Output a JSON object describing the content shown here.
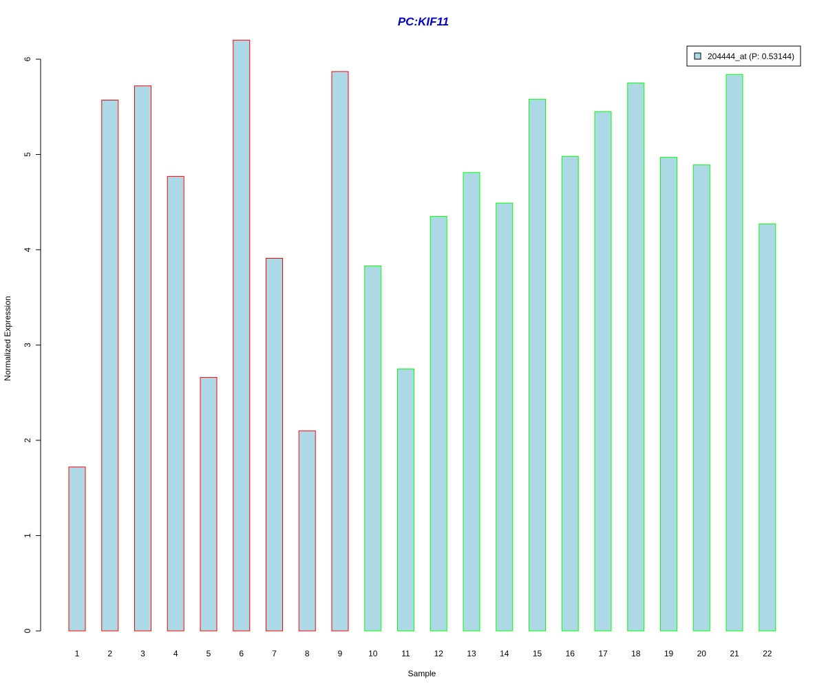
{
  "chart_data": {
    "type": "bar",
    "title": "PC:KIF11",
    "xlabel": "Sample",
    "ylabel": "Normalized Expression",
    "categories": [
      "1",
      "2",
      "3",
      "4",
      "5",
      "6",
      "7",
      "8",
      "9",
      "10",
      "11",
      "12",
      "13",
      "14",
      "15",
      "16",
      "17",
      "18",
      "19",
      "20",
      "21",
      "22"
    ],
    "values": [
      1.72,
      5.57,
      5.72,
      4.77,
      2.66,
      6.2,
      3.91,
      2.1,
      5.87,
      3.83,
      2.75,
      4.35,
      4.81,
      4.49,
      5.58,
      4.98,
      5.45,
      5.75,
      4.97,
      4.89,
      5.84,
      4.27
    ],
    "ylim": [
      0,
      6.2
    ],
    "yticks": [
      0,
      1,
      2,
      3,
      4,
      5,
      6
    ],
    "grid": false,
    "legend": {
      "position": "top-right",
      "entries": [
        {
          "label": "204444_at (P: 0.53144)",
          "color": "#add8e6"
        }
      ]
    },
    "bar_fill": "#add8e6",
    "border_colors": [
      "#ff0000",
      "#ff0000",
      "#ff0000",
      "#ff0000",
      "#ff0000",
      "#ff0000",
      "#ff0000",
      "#ff0000",
      "#ff0000",
      "#00ff00",
      "#00ff00",
      "#00ff00",
      "#00ff00",
      "#00ff00",
      "#00ff00",
      "#00ff00",
      "#00ff00",
      "#00ff00",
      "#00ff00",
      "#00ff00",
      "#00ff00",
      "#00ff00"
    ],
    "title_color": "#0000cc"
  }
}
